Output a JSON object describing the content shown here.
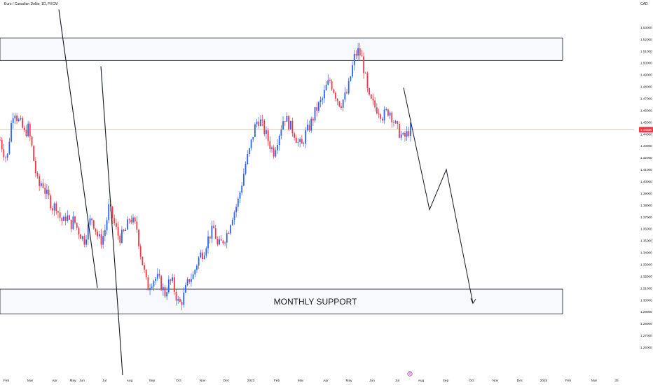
{
  "title": "Euro / Canadian Dollar, 1D, FXCM",
  "currency": "CAD",
  "colors": {
    "up": "#2962ff",
    "down": "#f23645",
    "price_line": "#f23645",
    "channel": "#131722",
    "zone_fill": "#f8f9fd",
    "zone_border": "#131722",
    "axis_text": "#131722",
    "background": "#ffffff",
    "event_marker": "#9c27b0"
  },
  "chart_data": {
    "type": "candlestick",
    "ylim": [
      1.26,
      1.54
    ],
    "y_ticks": [
      "1.26000",
      "1.27000",
      "1.28000",
      "1.29000",
      "1.30000",
      "1.31000",
      "1.32000",
      "1.33000",
      "1.34000",
      "1.35000",
      "1.36000",
      "1.37000",
      "1.38000",
      "1.39000",
      "1.40000",
      "1.41000",
      "1.42000",
      "1.43000",
      "1.44000",
      "1.45000",
      "1.46000",
      "1.47000",
      "1.48000",
      "1.49000",
      "1.50000",
      "1.51000",
      "1.52000",
      "1.53000"
    ],
    "x_ticks": [
      "Feb",
      "Mar",
      "Apr",
      "May",
      "Jun",
      "Jul",
      "Aug",
      "Sep",
      "Oct",
      "Nov",
      "Dec",
      "2023",
      "Feb",
      "Mar",
      "Apr",
      "May",
      "Jun",
      "Jul",
      "Aug",
      "Sep",
      "Oct",
      "Nov",
      "Dec",
      "2024",
      "Feb",
      "Mar",
      "25"
    ],
    "last_price": 1.4436,
    "last_price_label": "1.44356",
    "price_path": [
      1.435,
      1.425,
      1.418,
      1.445,
      1.462,
      1.452,
      1.448,
      1.44,
      1.445,
      1.43,
      1.41,
      1.395,
      1.4,
      1.39,
      1.385,
      1.378,
      1.38,
      1.37,
      1.365,
      1.372,
      1.362,
      1.368,
      1.36,
      1.355,
      1.35,
      1.36,
      1.37,
      1.362,
      1.352,
      1.35,
      1.36,
      1.378,
      1.37,
      1.36,
      1.352,
      1.355,
      1.36,
      1.37,
      1.365,
      1.36,
      1.34,
      1.325,
      1.31,
      1.315,
      1.318,
      1.318,
      1.312,
      1.305,
      1.314,
      1.316,
      1.305,
      1.296,
      1.3,
      1.31,
      1.318,
      1.32,
      1.33,
      1.338,
      1.34,
      1.35,
      1.356,
      1.36,
      1.345,
      1.348,
      1.352,
      1.358,
      1.37,
      1.376,
      1.385,
      1.4,
      1.415,
      1.425,
      1.438,
      1.45,
      1.452,
      1.445,
      1.438,
      1.43,
      1.425,
      1.435,
      1.445,
      1.455,
      1.45,
      1.445,
      1.44,
      1.432,
      1.43,
      1.44,
      1.445,
      1.452,
      1.46,
      1.465,
      1.47,
      1.48,
      1.485,
      1.478,
      1.47,
      1.465,
      1.47,
      1.475,
      1.49,
      1.505,
      1.51,
      1.505,
      1.49,
      1.47,
      1.466,
      1.462,
      1.46,
      1.455,
      1.458,
      1.46,
      1.452,
      1.445,
      1.44,
      1.436,
      1.44,
      1.445
    ],
    "zones": [
      {
        "name": "resistance",
        "y_top": 1.521,
        "y_bottom": 1.502,
        "label": ""
      },
      {
        "name": "monthly-support",
        "y_top": 1.309,
        "y_bottom": 1.288,
        "label": "MONTHLY SUPPORT"
      }
    ],
    "channel": {
      "upper": {
        "from": [
          "Jul",
          1.31
        ],
        "to": [
          "May",
          1.545
        ]
      },
      "lower": {
        "from": [
          "Aug",
          1.26
        ],
        "to": [
          "May",
          1.497
        ]
      }
    },
    "projection": [
      1.479,
      1.376,
      1.41,
      1.297
    ]
  }
}
